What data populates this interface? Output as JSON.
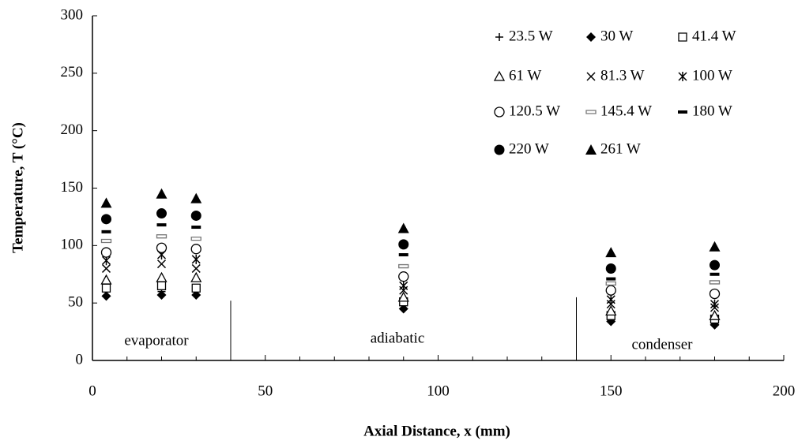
{
  "chart_data": {
    "type": "scatter",
    "xlabel": "Axial Distance, x (mm)",
    "ylabel": "Temperature, T (°C)",
    "x": [
      4,
      20,
      30,
      90,
      150,
      180
    ],
    "xlim": [
      0,
      200
    ],
    "xticks": [
      0,
      50,
      100,
      150,
      200
    ],
    "xminorticks": [
      10,
      20,
      30,
      40,
      60,
      70,
      80,
      90,
      110,
      120,
      130,
      140,
      160,
      170,
      180,
      190
    ],
    "ylim": [
      0,
      300
    ],
    "yticks": [
      0,
      50,
      100,
      150,
      200,
      250,
      300
    ],
    "grid": false,
    "legend": "upper right",
    "annotations": [
      "evaporator",
      "adiabatic",
      "condenser"
    ],
    "dividers": [
      {
        "x": 40,
        "y_top": 52
      },
      {
        "x": 140,
        "y_top": 55
      }
    ],
    "series": [
      {
        "name": "23.5 W",
        "marker": "plus",
        "color": "#000000",
        "values": [
          60,
          60,
          60,
          48,
          36,
          34
        ]
      },
      {
        "name": "30 W",
        "marker": "diamond",
        "color": "#000000",
        "values": [
          56,
          57,
          57,
          45,
          34,
          31
        ]
      },
      {
        "name": "41.4 W",
        "marker": "square-open",
        "color": "#000000",
        "values": [
          63,
          65,
          63,
          51,
          39,
          36
        ]
      },
      {
        "name": "61 W",
        "marker": "triangle-open",
        "color": "#000000",
        "values": [
          70,
          72,
          72,
          55,
          43,
          39
        ]
      },
      {
        "name": "81.3 W",
        "marker": "x",
        "color": "#000000",
        "values": [
          80,
          84,
          80,
          61,
          49,
          46
        ]
      },
      {
        "name": "100 W",
        "marker": "asterisk",
        "color": "#000000",
        "values": [
          87,
          92,
          88,
          65,
          53,
          49
        ]
      },
      {
        "name": "120.5 W",
        "marker": "circle-open",
        "color": "#000000",
        "values": [
          94,
          98,
          97,
          73,
          61,
          58
        ]
      },
      {
        "name": "145.4 W",
        "marker": "dash-open",
        "color": "#777777",
        "values": [
          104,
          108,
          106,
          82,
          67,
          68
        ]
      },
      {
        "name": "180 W",
        "marker": "dash",
        "color": "#000000",
        "values": [
          112,
          118,
          116,
          92,
          71,
          75
        ]
      },
      {
        "name": "220 W",
        "marker": "circle",
        "color": "#000000",
        "values": [
          123,
          128,
          126,
          101,
          80,
          83
        ]
      },
      {
        "name": "261 W",
        "marker": "triangle",
        "color": "#000000",
        "values": [
          137,
          145,
          141,
          115,
          94,
          99
        ]
      }
    ]
  }
}
